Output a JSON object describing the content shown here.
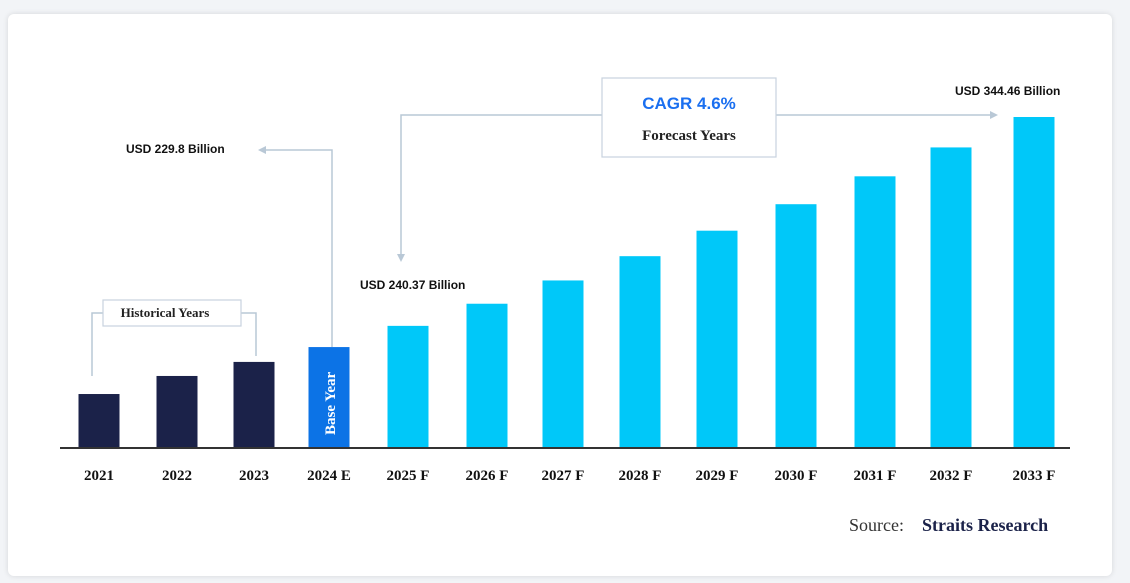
{
  "chart_data": {
    "type": "bar",
    "categories": [
      "2021",
      "2022",
      "2023",
      "2024 E",
      "2025 F",
      "2026 F",
      "2027 F",
      "2028 F",
      "2029 F",
      "2030 F",
      "2031 F",
      "2032 F",
      "2033 F"
    ],
    "values": [
      206.4,
      215.4,
      222.4,
      229.8,
      240.37,
      251.4,
      263.0,
      275.1,
      287.8,
      301.0,
      314.9,
      329.3,
      344.46
    ],
    "ylim": [
      179.5,
      344.46
    ],
    "title": "",
    "xlabel": "",
    "ylabel": "",
    "grid": false,
    "segments": [
      {
        "name": "historical",
        "categories": [
          "2021",
          "2022",
          "2023"
        ],
        "color": "#1b2249"
      },
      {
        "name": "base",
        "categories": [
          "2024 E"
        ],
        "color": "#0c73e6"
      },
      {
        "name": "forecast",
        "categories": [
          "2025 F",
          "2026 F",
          "2027 F",
          "2028 F",
          "2029 F",
          "2030 F",
          "2031 F",
          "2032 F",
          "2033 F"
        ],
        "color": "#00c8f9"
      }
    ],
    "annotations": {
      "base_value": "USD 229.8 Billion",
      "first_forecast_value": "USD 240.37 Billion",
      "last_forecast_value": "USD 344.46 Billion",
      "cagr": "CAGR 4.6%",
      "forecast_label": "Forecast Years",
      "historical_label": "Historical Years",
      "base_year_label": "Base Year"
    },
    "source_prefix": "Source:",
    "source_name": "Straits Research"
  },
  "colors": {
    "axis": "#333333",
    "connector": "#b9c8d6",
    "cagr": "#1a6ff0",
    "source": "#1b2249"
  }
}
